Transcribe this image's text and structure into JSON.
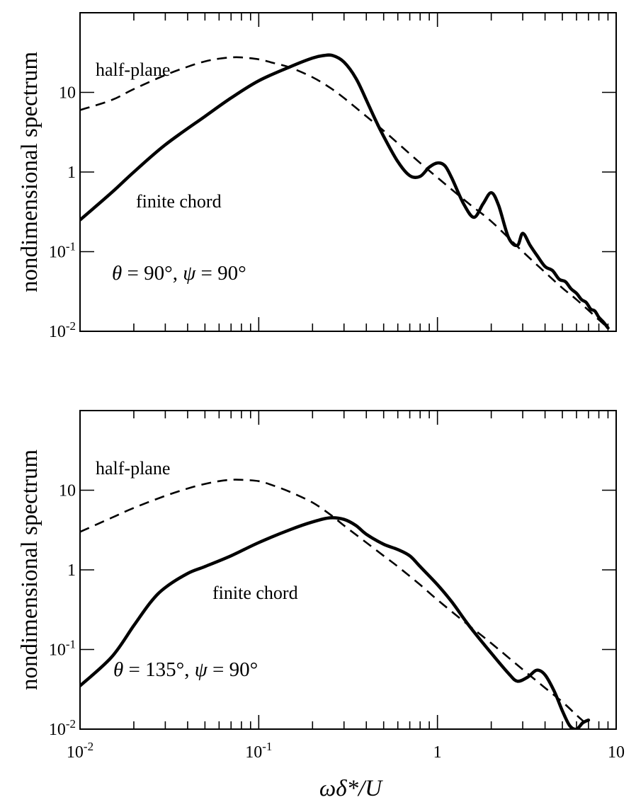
{
  "chart_data": [
    {
      "type": "line",
      "ylabel": "nondimensional spectrum",
      "xlabel": "",
      "xscale": "log",
      "yscale": "log",
      "xlim": [
        0.01,
        10
      ],
      "ylim": [
        0.01,
        100
      ],
      "y_tick_labels": [
        {
          "value": 0.01,
          "base": "10",
          "exp": "-2"
        },
        {
          "value": 0.1,
          "base": "10",
          "exp": "-1"
        },
        {
          "value": 1,
          "base": "1",
          "exp": ""
        },
        {
          "value": 10,
          "base": "10",
          "exp": ""
        }
      ],
      "x_tick_labels": [],
      "annotation": "θ = 90°, ψ = 90°",
      "series": [
        {
          "name": "half-plane",
          "style": "dashed",
          "x": [
            0.01,
            0.015,
            0.02,
            0.03,
            0.04,
            0.05,
            0.06,
            0.07,
            0.08,
            0.1,
            0.12,
            0.15,
            0.2,
            0.25,
            0.3,
            0.4,
            0.5,
            0.6,
            0.8,
            1,
            1.5,
            2,
            3,
            4,
            5,
            6,
            8,
            9
          ],
          "y": [
            6,
            8,
            11,
            16.5,
            21,
            24.5,
            26.5,
            27.5,
            27.5,
            26,
            23.5,
            20.5,
            15.5,
            11.5,
            8.5,
            5,
            3.3,
            2.3,
            1.3,
            0.85,
            0.4,
            0.24,
            0.1,
            0.055,
            0.035,
            0.025,
            0.014,
            0.011
          ]
        },
        {
          "name": "finite chord",
          "style": "solid",
          "x": [
            0.01,
            0.015,
            0.02,
            0.03,
            0.05,
            0.07,
            0.1,
            0.15,
            0.2,
            0.23,
            0.26,
            0.3,
            0.35,
            0.4,
            0.45,
            0.5,
            0.6,
            0.7,
            0.8,
            0.9,
            1,
            1.1,
            1.2,
            1.4,
            1.6,
            1.8,
            2,
            2.2,
            2.5,
            2.8,
            3,
            3.3,
            3.6,
            4,
            4.4,
            4.8,
            5.2,
            5.6,
            6,
            6.4,
            6.8,
            7.2,
            7.6,
            8,
            8.5,
            9
          ],
          "y": [
            0.25,
            0.55,
            1,
            2.2,
            5,
            8.5,
            14,
            21,
            27,
            29,
            29,
            24,
            15,
            8,
            4.5,
            2.8,
            1.35,
            0.9,
            0.88,
            1.15,
            1.3,
            1.2,
            0.85,
            0.4,
            0.27,
            0.4,
            0.55,
            0.38,
            0.15,
            0.12,
            0.17,
            0.12,
            0.09,
            0.065,
            0.058,
            0.045,
            0.042,
            0.034,
            0.03,
            0.025,
            0.023,
            0.019,
            0.018,
            0.015,
            0.013,
            0.011
          ]
        }
      ]
    },
    {
      "type": "line",
      "ylabel": "nondimensional spectrum",
      "xlabel": "ωδ*/U",
      "xscale": "log",
      "yscale": "log",
      "xlim": [
        0.01,
        10
      ],
      "ylim": [
        0.01,
        100
      ],
      "y_tick_labels": [
        {
          "value": 0.01,
          "base": "10",
          "exp": "-2"
        },
        {
          "value": 0.1,
          "base": "10",
          "exp": "-1"
        },
        {
          "value": 1,
          "base": "1",
          "exp": ""
        },
        {
          "value": 10,
          "base": "10",
          "exp": ""
        }
      ],
      "x_tick_labels": [
        {
          "value": 0.01,
          "base": "10",
          "exp": "-2"
        },
        {
          "value": 0.1,
          "base": "10",
          "exp": "-1"
        },
        {
          "value": 1,
          "base": "1",
          "exp": ""
        },
        {
          "value": 10,
          "base": "10",
          "exp": ""
        }
      ],
      "annotation": "θ = 135°, ψ = 90°",
      "series": [
        {
          "name": "half-plane",
          "style": "dashed",
          "x": [
            0.01,
            0.015,
            0.02,
            0.03,
            0.04,
            0.05,
            0.06,
            0.07,
            0.08,
            0.1,
            0.12,
            0.15,
            0.2,
            0.25,
            0.3,
            0.4,
            0.5,
            0.6,
            0.8,
            1,
            1.5,
            2,
            3,
            4,
            5,
            6,
            7
          ],
          "y": [
            3,
            4.5,
            6,
            8.5,
            10.5,
            12,
            13,
            13.5,
            13.5,
            13,
            11.5,
            9.5,
            7,
            5,
            3.6,
            2.2,
            1.5,
            1.1,
            0.65,
            0.42,
            0.2,
            0.12,
            0.056,
            0.033,
            0.022,
            0.015,
            0.011
          ]
        },
        {
          "name": "finite chord",
          "style": "solid",
          "x": [
            0.01,
            0.015,
            0.02,
            0.025,
            0.03,
            0.04,
            0.05,
            0.07,
            0.1,
            0.15,
            0.2,
            0.25,
            0.3,
            0.35,
            0.4,
            0.5,
            0.6,
            0.7,
            0.8,
            1,
            1.2,
            1.5,
            2,
            2.5,
            2.8,
            3.2,
            3.6,
            4,
            4.5,
            5,
            5.5,
            6,
            6.5,
            7
          ],
          "y": [
            0.035,
            0.08,
            0.2,
            0.4,
            0.6,
            0.9,
            1.1,
            1.5,
            2.2,
            3.2,
            4,
            4.5,
            4.3,
            3.6,
            2.8,
            2.1,
            1.8,
            1.5,
            1.1,
            0.65,
            0.4,
            0.2,
            0.09,
            0.05,
            0.04,
            0.045,
            0.055,
            0.048,
            0.03,
            0.017,
            0.011,
            0.01,
            0.012,
            0.013
          ]
        }
      ]
    }
  ]
}
